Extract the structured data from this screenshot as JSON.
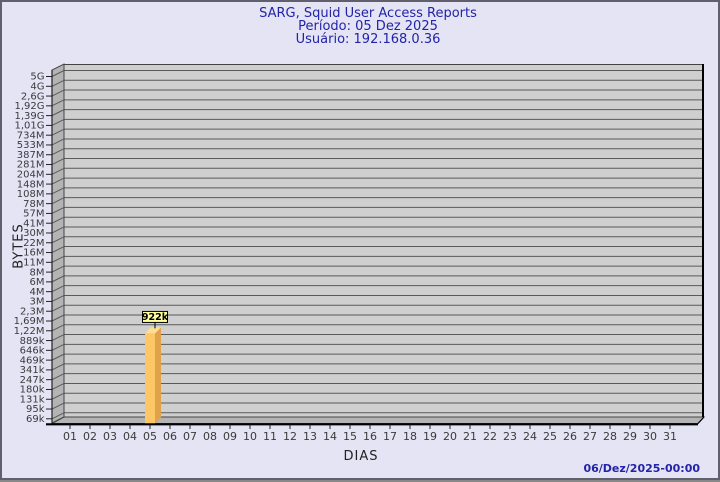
{
  "header": {
    "title": "SARG, Squid User Access Reports",
    "period": "Período: 05 Dez 2025",
    "user": "Usuário: 192.168.0.36"
  },
  "footer": {
    "generated": "06/Dez/2025-00:00"
  },
  "chart_data": {
    "type": "bar",
    "title": "SARG, Squid User Access Reports",
    "subtitle_period": "Período: 05 Dez 2025",
    "subtitle_user": "Usuário: 192.168.0.36",
    "xlabel": "DIAS",
    "ylabel": "BYTES",
    "y_scale": "logarithmic",
    "grid": true,
    "x_categories": [
      "01",
      "02",
      "03",
      "04",
      "05",
      "06",
      "07",
      "08",
      "09",
      "10",
      "11",
      "12",
      "13",
      "14",
      "15",
      "16",
      "17",
      "18",
      "19",
      "20",
      "21",
      "22",
      "23",
      "24",
      "25",
      "26",
      "27",
      "28",
      "29",
      "30",
      "31"
    ],
    "y_tick_labels_top_to_bottom": [
      "5G",
      "4G",
      "2,6G",
      "1,92G",
      "1,39G",
      "1,01G",
      "734M",
      "533M",
      "387M",
      "281M",
      "204M",
      "148M",
      "108M",
      "78M",
      "57M",
      "41M",
      "30M",
      "22M",
      "16M",
      "11M",
      "8M",
      "6M",
      "4M",
      "3M",
      "2,3M",
      "1,69M",
      "1,22M",
      "889k",
      "646k",
      "469k",
      "341k",
      "247k",
      "180k",
      "131k",
      "95k",
      "69k"
    ],
    "bars": [
      {
        "x": "05",
        "value_label": "922k"
      }
    ],
    "colors": {
      "background": "#E4E4F5",
      "plot_face": "#CFCFCF",
      "plot_wall": "#B4B4B4",
      "gridline": "#5a5a5a",
      "edge": "#444444",
      "axis": "#000000",
      "tick_text": "#3b3b3b",
      "bar_front": "#FDC767",
      "bar_side": "#E0A14B",
      "bar_top": "#FFDE92",
      "value_box_bg": "#FFFF9C",
      "value_box_border": "#000000",
      "title_text": "#2323A8"
    }
  }
}
